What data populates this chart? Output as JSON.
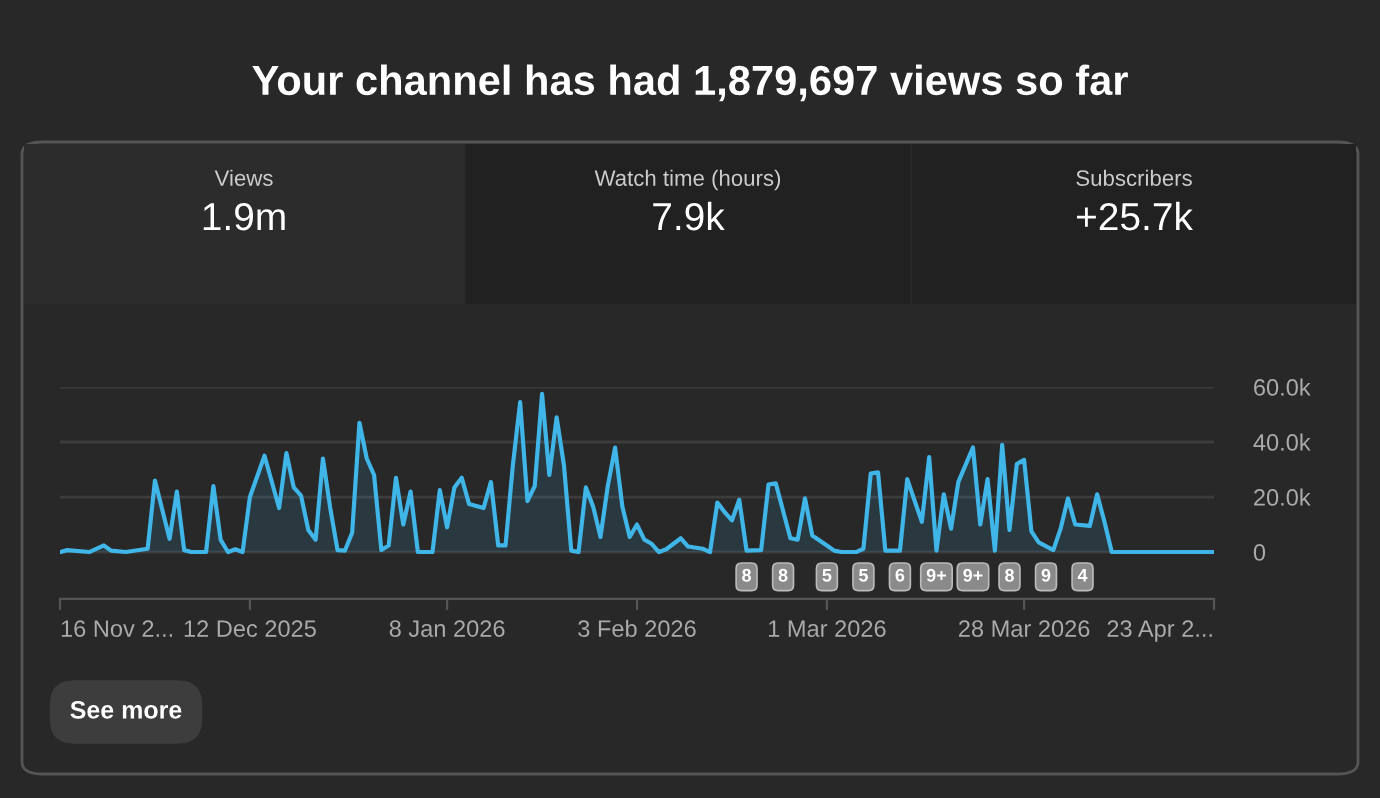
{
  "chart_data": {
    "type": "area",
    "title": "Your channel has had 1,879,697 views so far",
    "x": [
      "2025-11-16",
      "2025-11-17",
      "2025-11-20",
      "2025-11-22",
      "2025-11-23",
      "2025-11-25",
      "2025-11-28",
      "2025-11-29",
      "2025-12-01",
      "2025-12-02",
      "2025-12-03",
      "2025-12-04",
      "2025-12-06",
      "2025-12-07",
      "2025-12-08",
      "2025-12-09",
      "2025-12-10",
      "2025-12-11",
      "2025-12-12",
      "2025-12-14",
      "2025-12-16",
      "2025-12-17",
      "2025-12-18",
      "2025-12-19",
      "2025-12-20",
      "2025-12-21",
      "2025-12-22",
      "2025-12-23",
      "2025-12-24",
      "2025-12-25",
      "2025-12-26",
      "2025-12-27",
      "2025-12-28",
      "2025-12-29",
      "2025-12-30",
      "2025-12-31",
      "2026-01-01",
      "2026-01-02",
      "2026-01-03",
      "2026-01-04",
      "2026-01-06",
      "2026-01-07",
      "2026-01-08",
      "2026-01-09",
      "2026-01-10",
      "2026-01-11",
      "2026-01-13",
      "2026-01-14",
      "2026-01-15",
      "2026-01-16",
      "2026-01-17",
      "2026-01-18",
      "2026-01-19",
      "2026-01-20",
      "2026-01-21",
      "2026-01-22",
      "2026-01-23",
      "2026-01-24",
      "2026-01-25",
      "2026-01-26",
      "2026-01-27",
      "2026-01-28",
      "2026-01-29",
      "2026-01-30",
      "2026-01-31",
      "2026-02-01",
      "2026-02-02",
      "2026-02-03",
      "2026-02-04",
      "2026-02-05",
      "2026-02-06",
      "2026-02-07",
      "2026-02-09",
      "2026-02-10",
      "2026-02-12",
      "2026-02-13",
      "2026-02-14",
      "2026-02-15",
      "2026-02-16",
      "2026-02-17",
      "2026-02-18",
      "2026-02-20",
      "2026-02-21",
      "2026-02-22",
      "2026-02-23",
      "2026-02-24",
      "2026-02-25",
      "2026-02-26",
      "2026-02-27",
      "2026-03-01",
      "2026-03-02",
      "2026-03-03",
      "2026-03-05",
      "2026-03-06",
      "2026-03-07",
      "2026-03-08",
      "2026-03-09",
      "2026-03-10",
      "2026-03-11",
      "2026-03-12",
      "2026-03-14",
      "2026-03-15",
      "2026-03-16",
      "2026-03-17",
      "2026-03-18",
      "2026-03-19",
      "2026-03-21",
      "2026-03-22",
      "2026-03-23",
      "2026-03-24",
      "2026-03-25",
      "2026-03-26",
      "2026-03-27",
      "2026-03-28",
      "2026-03-29",
      "2026-03-30",
      "2026-04-01",
      "2026-04-02",
      "2026-04-03",
      "2026-04-04",
      "2026-04-06",
      "2026-04-07",
      "2026-04-08",
      "2026-04-09",
      "2026-04-23"
    ],
    "series": [
      {
        "color": "#3fb5e8",
        "values": [
          0,
          700,
          0,
          2400,
          500,
          0,
          1200,
          26000,
          4800,
          22000,
          700,
          0,
          0,
          24000,
          4400,
          0,
          1000,
          0,
          20000,
          35000,
          16000,
          36000,
          23500,
          20500,
          8000,
          4500,
          34000,
          16000,
          700,
          500,
          7000,
          47000,
          34000,
          28000,
          700,
          2400,
          27000,
          10000,
          22000,
          0,
          0,
          22500,
          9000,
          23500,
          27000,
          17500,
          16000,
          25500,
          2400,
          2400,
          31500,
          54500,
          18500,
          24000,
          57500,
          28000,
          49000,
          31500,
          500,
          0,
          23500,
          16500,
          5500,
          24000,
          38000,
          16500,
          5500,
          10000,
          4500,
          3000,
          0,
          1000,
          5000,
          2000,
          1200,
          0,
          18000,
          14500,
          11500,
          19000,
          500,
          700,
          24500,
          25000,
          15000,
          5000,
          4500,
          19500,
          6000,
          2400,
          500,
          0,
          0,
          1200,
          28500,
          29000,
          500,
          500,
          500,
          26500,
          11000,
          34500,
          500,
          21000,
          8500,
          25500,
          38000,
          10000,
          26500,
          500,
          39000,
          8000,
          32000,
          33500,
          7500,
          3500,
          700,
          8500,
          19500,
          10000,
          9500,
          21000,
          11000,
          0,
          0
        ]
      }
    ],
    "xlim": [
      "2025-11-16",
      "2026-04-23"
    ],
    "xticks": [
      {
        "value": "2025-11-16",
        "label": "16 Nov 2..."
      },
      {
        "value": "2025-12-12",
        "label": "12 Dec 2025"
      },
      {
        "value": "2026-01-08",
        "label": "8 Jan 2026"
      },
      {
        "value": "2026-02-03",
        "label": "3 Feb 2026"
      },
      {
        "value": "2026-03-01",
        "label": "1 Mar 2026"
      },
      {
        "value": "2026-03-28",
        "label": "28 Mar 2026"
      },
      {
        "value": "2026-04-23",
        "label": "23 Apr 2..."
      }
    ],
    "ylim": [
      -17000,
      60000
    ],
    "yticks": [
      0,
      {
        "value": 20000,
        "label": "20.0k"
      },
      {
        "value": 40000,
        "label": "40.0k"
      },
      {
        "value": 60000,
        "label": "60.0k"
      }
    ],
    "grid": "y",
    "annotations": [
      "Views",
      "1.9m",
      "Watch time (hours)",
      "7.9k",
      "Subscribers",
      "+25.7k",
      {
        "text": "8",
        "x": "2026-02-18",
        "y": -9000
      },
      {
        "text": "8",
        "x": "2026-02-23",
        "y": -9000
      },
      {
        "text": "5",
        "x": "2026-03-01",
        "y": -9000
      },
      {
        "text": "5",
        "x": "2026-03-06",
        "y": -9000
      },
      {
        "text": "6",
        "x": "2026-03-11",
        "y": -9000
      },
      {
        "text": "9+",
        "x": "2026-03-16",
        "y": -9000
      },
      {
        "text": "9+",
        "x": "2026-03-21",
        "y": -9000
      },
      {
        "text": "8",
        "x": "2026-03-26",
        "y": -9000
      },
      {
        "text": "9",
        "x": "2026-03-31",
        "y": -9000
      },
      {
        "text": "4",
        "x": "2026-04-05",
        "y": -9000
      },
      "See more"
    ]
  }
}
